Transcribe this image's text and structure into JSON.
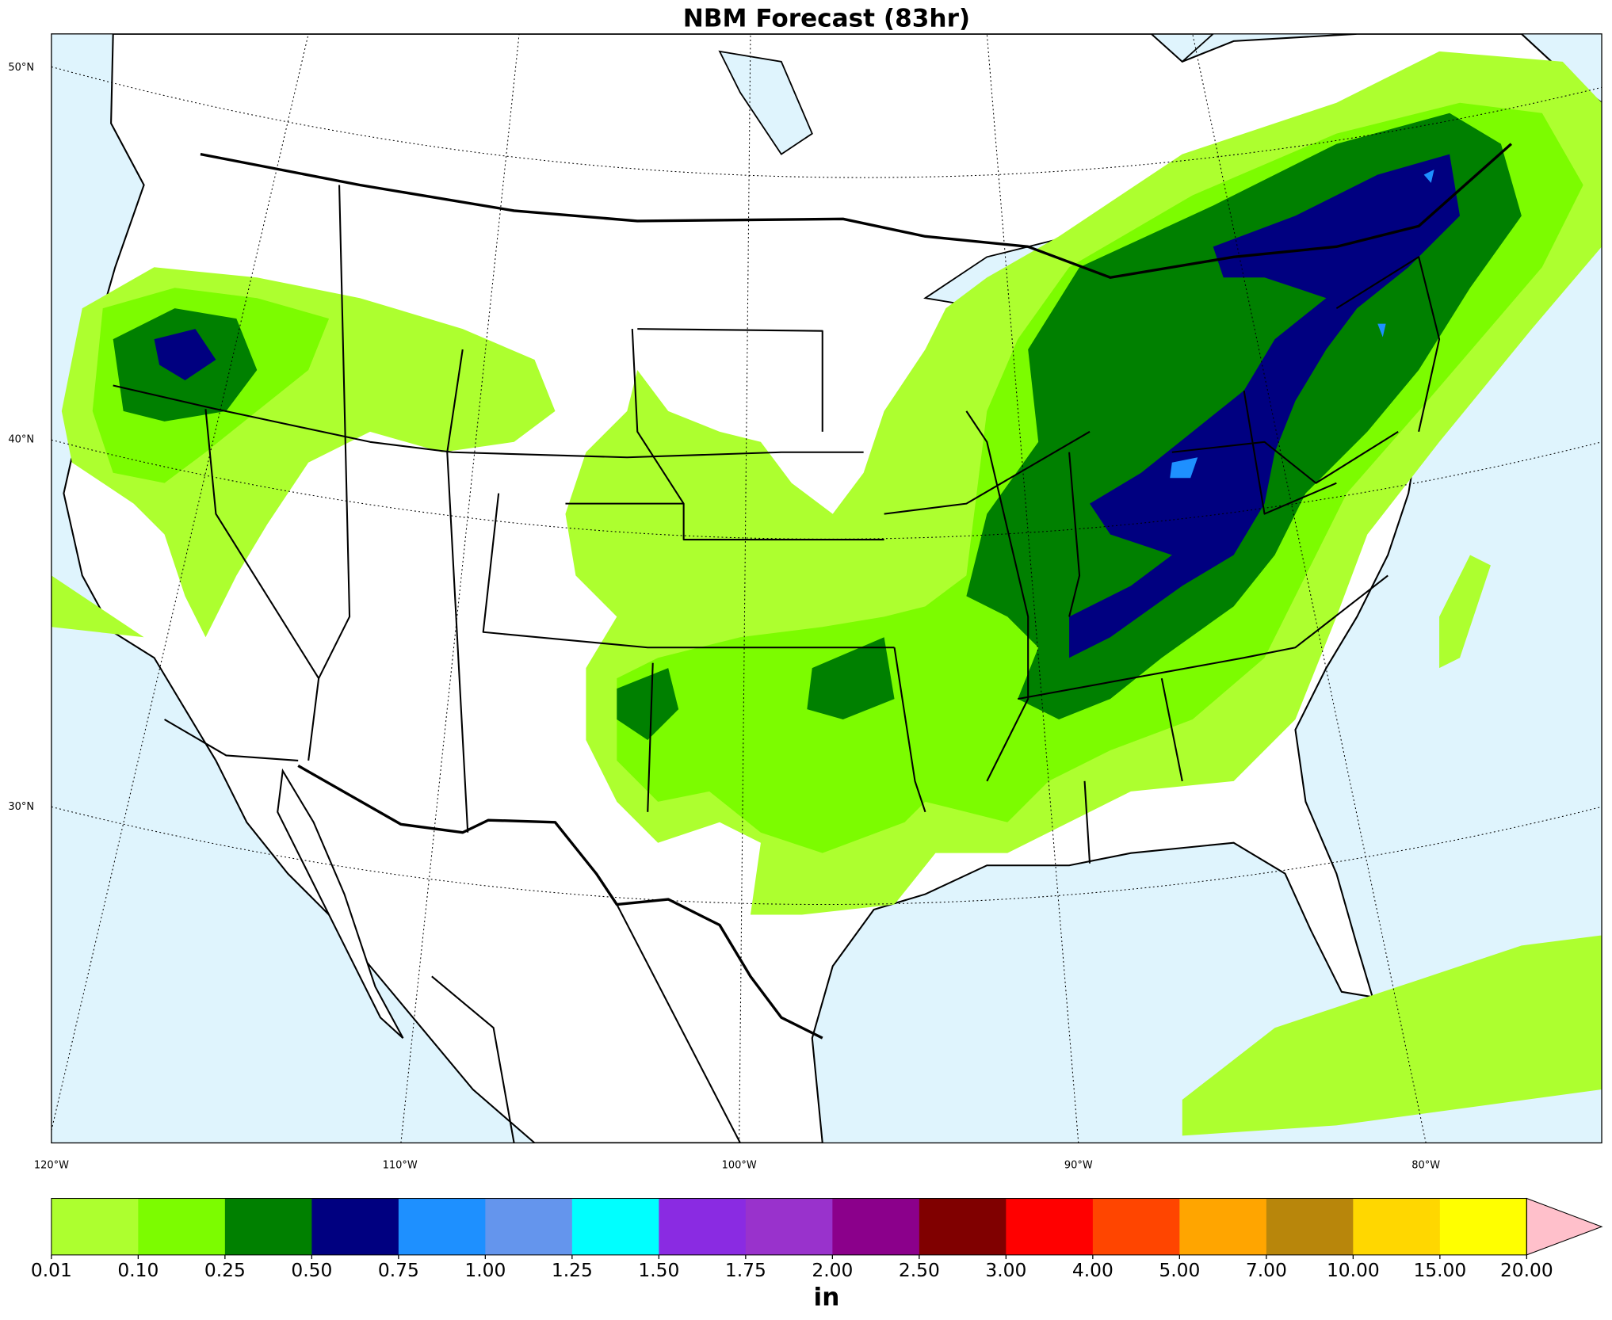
{
  "title": "NBM Forecast (83hr)",
  "latitude_labels": [
    "50°N",
    "40°N",
    "30°N"
  ],
  "longitude_labels": [
    "120°W",
    "110°W",
    "100°W",
    "90°W",
    "80°W"
  ],
  "colorbar": {
    "levels": [
      "0.01",
      "0.10",
      "0.25",
      "0.50",
      "0.75",
      "1.00",
      "1.25",
      "1.50",
      "1.75",
      "2.00",
      "2.50",
      "3.00",
      "4.00",
      "5.00",
      "7.00",
      "10.00",
      "15.00",
      "20.00"
    ],
    "colors": [
      "#adff2f",
      "#7cfc00",
      "#008000",
      "#000080",
      "#1e90ff",
      "#6495ed",
      "#00ffff",
      "#8a2be2",
      "#9932cc",
      "#8b008b",
      "#800000",
      "#ff0000",
      "#ff4500",
      "#ffa500",
      "#b8860b",
      "#ffd700",
      "#ffff00"
    ],
    "extend_color": "#ffc0cb",
    "unit": "in"
  }
}
